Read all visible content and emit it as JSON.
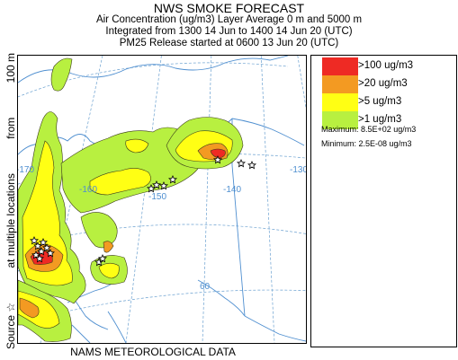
{
  "header": {
    "title": "NWS SMOKE FORECAST",
    "line1": "Air Concentration (ug/m3) Layer Average    0 m and  5000 m",
    "line2": "Integrated from 1300 14 Jun to 1400 14 Jun 20 (UTC)",
    "line3": "PM25 Release started at 0600 13 Jun 20 (UTC)"
  },
  "side_label": {
    "source": "Source ☆",
    "locations": "at multiple locations",
    "from": "from",
    "height": "100 m"
  },
  "footer": "NAMS METEOROLOGICAL DATA",
  "legend": {
    "items": [
      {
        "label": ">100 ug/m3",
        "color": "#ee2a24"
      },
      {
        "label": ">20 ug/m3",
        "color": "#f39a22"
      },
      {
        "label": ">5 ug/m3",
        "color": "#ffff14"
      },
      {
        "label": ">1 ug/m3",
        "color": "#b8f040"
      }
    ],
    "maximum": "Maximum: 8.5E+02 ug/m3",
    "minimum": "Minimum: 2.5E-08 ug/m3"
  },
  "map": {
    "longitude_labels": [
      "-170",
      "-160",
      "-150",
      "-140",
      "-130"
    ],
    "latitude_labels": [
      "60"
    ],
    "colors": {
      "gridline": "#6aa0d0",
      "coast": "#4f8fd0",
      "contour": "#3a3a1a"
    }
  }
}
